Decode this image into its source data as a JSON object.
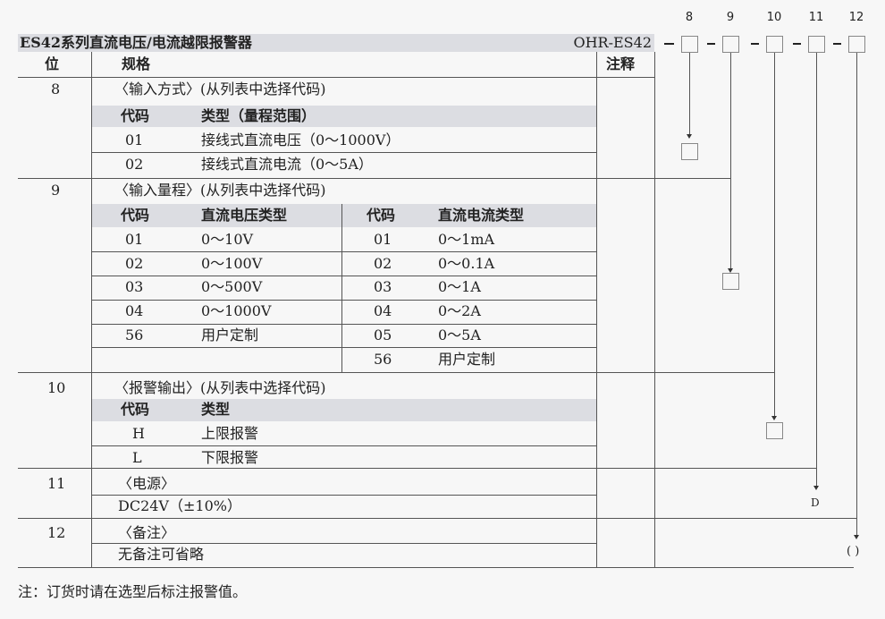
{
  "title": "ES42系列直流电压/电流越限报警器",
  "model": "OHR-ES42",
  "headers": {
    "pos": "位",
    "spec": "规格",
    "note": "注释"
  },
  "code_positions": [
    "8",
    "9",
    "10",
    "11",
    "12"
  ],
  "sections": {
    "s8": {
      "pos": "8",
      "title": "〈输入方式〉(从列表中选择代码)",
      "col_code": "代码",
      "col_type": "类型（量程范围）",
      "rows": [
        {
          "code": "01",
          "type": "接线式直流电压（0～1000V）"
        },
        {
          "code": "02",
          "type": "接线式直流电流（0～5A）"
        }
      ]
    },
    "s9": {
      "pos": "9",
      "title": "〈输入量程〉(从列表中选择代码)",
      "col_code": "代码",
      "col_voltage": "直流电压类型",
      "col_code2": "代码",
      "col_current": "直流电流类型",
      "voltage": [
        {
          "code": "01",
          "type": "0～10V"
        },
        {
          "code": "02",
          "type": "0～100V"
        },
        {
          "code": "03",
          "type": "0～500V"
        },
        {
          "code": "04",
          "type": "0～1000V"
        },
        {
          "code": "56",
          "type": "用户定制"
        }
      ],
      "current": [
        {
          "code": "01",
          "type": "0～1mA"
        },
        {
          "code": "02",
          "type": "0～0.1A"
        },
        {
          "code": "03",
          "type": "0～1A"
        },
        {
          "code": "04",
          "type": "0～2A"
        },
        {
          "code": "05",
          "type": "0～5A"
        },
        {
          "code": "56",
          "type": "用户定制"
        }
      ]
    },
    "s10": {
      "pos": "10",
      "title": "〈报警输出〉(从列表中选择代码)",
      "col_code": "代码",
      "col_type": "类型",
      "rows": [
        {
          "code": "H",
          "type": "上限报警"
        },
        {
          "code": "L",
          "type": "下限报警"
        }
      ]
    },
    "s11": {
      "pos": "11",
      "title": "〈电源〉",
      "value": "DC24V（±10%）",
      "result": "D"
    },
    "s12": {
      "pos": "12",
      "title": "〈备注〉",
      "value": "无备注可省略",
      "result": "( )"
    }
  },
  "footnote": "注：订货时请在选型后标注报警值。"
}
